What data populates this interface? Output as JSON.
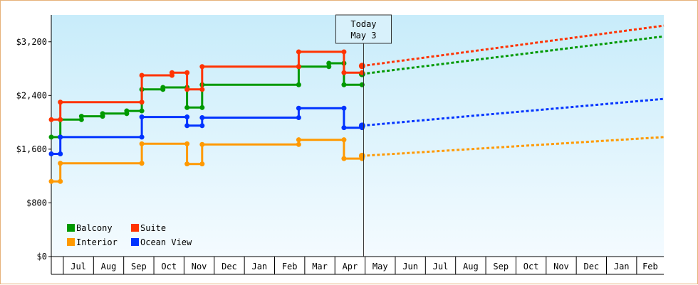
{
  "chart_data": {
    "type": "line",
    "today": {
      "label": "Today",
      "date_label": "May 3",
      "x": 9.0
    },
    "y_axis": {
      "min": 0,
      "max": 3600,
      "ticks": [
        0,
        800,
        1600,
        2400,
        3200
      ],
      "tick_labels": [
        "$0",
        "$800",
        "$1,600",
        "$2,400",
        "$3,200"
      ]
    },
    "x_axis": {
      "min": -0.4,
      "max": 19.9,
      "months": [
        "Jul",
        "Aug",
        "Sep",
        "Oct",
        "Nov",
        "Dec",
        "Jan",
        "Feb",
        "Mar",
        "Apr",
        "May",
        "Jun",
        "Jul",
        "Aug",
        "Sep",
        "Oct",
        "Nov",
        "Dec",
        "Jan",
        "Feb"
      ],
      "month_starts": [
        0,
        1,
        2,
        3,
        4,
        5,
        6,
        7,
        8,
        9,
        10,
        11,
        12,
        13,
        14,
        15,
        16,
        17,
        18,
        19
      ]
    },
    "legend_position": "bottom-left",
    "series": [
      {
        "name": "Balcony",
        "color": "#009900",
        "history": [
          [
            -0.4,
            1780
          ],
          [
            -0.1,
            1780
          ],
          [
            -0.1,
            2040
          ],
          [
            0.6,
            2040
          ],
          [
            0.6,
            2090
          ],
          [
            1.3,
            2090
          ],
          [
            1.3,
            2130
          ],
          [
            2.1,
            2130
          ],
          [
            2.1,
            2170
          ],
          [
            2.6,
            2170
          ],
          [
            2.6,
            2490
          ],
          [
            3.3,
            2490
          ],
          [
            3.3,
            2520
          ],
          [
            4.1,
            2520
          ],
          [
            4.1,
            2220
          ],
          [
            4.6,
            2220
          ],
          [
            4.6,
            2560
          ],
          [
            7.8,
            2560
          ],
          [
            7.8,
            2830
          ],
          [
            8.8,
            2830
          ],
          [
            8.8,
            2880
          ],
          [
            9.3,
            2880
          ],
          [
            9.3,
            2560
          ],
          [
            9.9,
            2560
          ]
        ],
        "projection": [
          [
            9.9,
            2720
          ],
          [
            19.9,
            3280
          ]
        ]
      },
      {
        "name": "Suite",
        "color": "#ff3300",
        "history": [
          [
            -0.4,
            2040
          ],
          [
            -0.1,
            2040
          ],
          [
            -0.1,
            2300
          ],
          [
            2.6,
            2300
          ],
          [
            2.6,
            2700
          ],
          [
            3.6,
            2700
          ],
          [
            3.6,
            2740
          ],
          [
            4.1,
            2740
          ],
          [
            4.1,
            2490
          ],
          [
            4.6,
            2490
          ],
          [
            4.6,
            2830
          ],
          [
            7.8,
            2830
          ],
          [
            7.8,
            3050
          ],
          [
            9.3,
            3050
          ],
          [
            9.3,
            2740
          ],
          [
            9.9,
            2740
          ]
        ],
        "projection": [
          [
            9.9,
            2840
          ],
          [
            19.9,
            3440
          ]
        ]
      },
      {
        "name": "Interior",
        "color": "#ff9900",
        "history": [
          [
            -0.4,
            1120
          ],
          [
            -0.1,
            1120
          ],
          [
            -0.1,
            1390
          ],
          [
            2.6,
            1390
          ],
          [
            2.6,
            1680
          ],
          [
            4.1,
            1680
          ],
          [
            4.1,
            1380
          ],
          [
            4.6,
            1380
          ],
          [
            4.6,
            1670
          ],
          [
            7.8,
            1670
          ],
          [
            7.8,
            1740
          ],
          [
            9.3,
            1740
          ],
          [
            9.3,
            1460
          ],
          [
            9.9,
            1460
          ]
        ],
        "projection": [
          [
            9.9,
            1500
          ],
          [
            19.9,
            1780
          ]
        ]
      },
      {
        "name": "Ocean View",
        "color": "#0033ff",
        "history": [
          [
            -0.4,
            1530
          ],
          [
            -0.1,
            1530
          ],
          [
            -0.1,
            1780
          ],
          [
            2.6,
            1780
          ],
          [
            2.6,
            2080
          ],
          [
            4.1,
            2080
          ],
          [
            4.1,
            1950
          ],
          [
            4.6,
            1950
          ],
          [
            4.6,
            2070
          ],
          [
            7.8,
            2070
          ],
          [
            7.8,
            2210
          ],
          [
            9.3,
            2210
          ],
          [
            9.3,
            1920
          ],
          [
            9.9,
            1920
          ]
        ],
        "projection": [
          [
            9.9,
            1950
          ],
          [
            19.9,
            2350
          ]
        ]
      }
    ]
  }
}
